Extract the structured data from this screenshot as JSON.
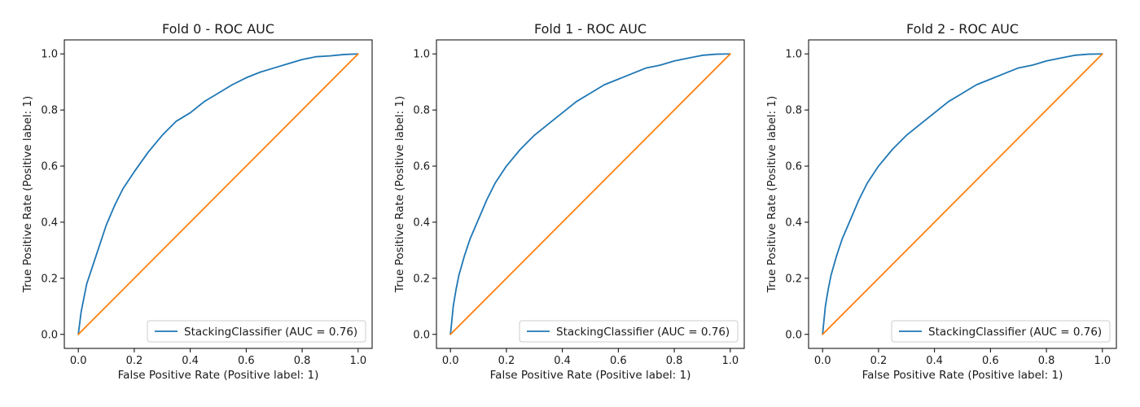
{
  "chart_data": [
    {
      "type": "line",
      "title": "Fold 0 - ROC AUC",
      "xlabel": "False Positive Rate (Positive label: 1)",
      "ylabel": "True Positive Rate (Positive label: 1)",
      "xlim": [
        -0.05,
        1.05
      ],
      "ylim": [
        -0.05,
        1.05
      ],
      "xticks": [
        "0.0",
        "0.2",
        "0.4",
        "0.6",
        "0.8",
        "1.0"
      ],
      "yticks": [
        "0.0",
        "0.2",
        "0.4",
        "0.6",
        "0.8",
        "1.0"
      ],
      "legend_position": "lower-right",
      "series": [
        {
          "name": "StackingClassifier (AUC = 0.76)",
          "color": "#1f77b4",
          "x": [
            0.0,
            0.01,
            0.02,
            0.03,
            0.05,
            0.07,
            0.1,
            0.13,
            0.16,
            0.2,
            0.25,
            0.3,
            0.35,
            0.4,
            0.45,
            0.5,
            0.55,
            0.6,
            0.65,
            0.7,
            0.75,
            0.8,
            0.85,
            0.9,
            0.95,
            1.0
          ],
          "y": [
            0.0,
            0.08,
            0.13,
            0.18,
            0.24,
            0.3,
            0.39,
            0.46,
            0.52,
            0.58,
            0.65,
            0.71,
            0.76,
            0.79,
            0.83,
            0.86,
            0.89,
            0.915,
            0.935,
            0.95,
            0.965,
            0.98,
            0.99,
            0.993,
            0.998,
            1.0
          ]
        },
        {
          "color": "#ff7f0e",
          "x": [
            0.0,
            1.0
          ],
          "y": [
            0.0,
            1.0
          ]
        }
      ]
    },
    {
      "type": "line",
      "title": "Fold 1 - ROC AUC",
      "xlabel": "False Positive Rate (Positive label: 1)",
      "ylabel": "True Positive Rate (Positive label: 1)",
      "xlim": [
        -0.05,
        1.05
      ],
      "ylim": [
        -0.05,
        1.05
      ],
      "xticks": [
        "0.0",
        "0.2",
        "0.4",
        "0.6",
        "0.8",
        "1.0"
      ],
      "yticks": [
        "0.0",
        "0.2",
        "0.4",
        "0.6",
        "0.8",
        "1.0"
      ],
      "legend_position": "lower-right",
      "series": [
        {
          "name": "StackingClassifier (AUC = 0.76)",
          "color": "#1f77b4",
          "x": [
            0.0,
            0.01,
            0.02,
            0.03,
            0.05,
            0.07,
            0.1,
            0.13,
            0.16,
            0.2,
            0.25,
            0.3,
            0.35,
            0.4,
            0.45,
            0.5,
            0.55,
            0.6,
            0.65,
            0.7,
            0.75,
            0.8,
            0.85,
            0.9,
            0.95,
            1.0
          ],
          "y": [
            0.0,
            0.1,
            0.16,
            0.21,
            0.28,
            0.34,
            0.41,
            0.48,
            0.54,
            0.6,
            0.66,
            0.71,
            0.75,
            0.79,
            0.83,
            0.86,
            0.89,
            0.91,
            0.93,
            0.95,
            0.96,
            0.975,
            0.985,
            0.995,
            0.999,
            1.0
          ]
        },
        {
          "color": "#ff7f0e",
          "x": [
            0.0,
            1.0
          ],
          "y": [
            0.0,
            1.0
          ]
        }
      ]
    },
    {
      "type": "line",
      "title": "Fold 2 - ROC AUC",
      "xlabel": "False Positive Rate (Positive label: 1)",
      "ylabel": "True Positive Rate (Positive label: 1)",
      "xlim": [
        -0.05,
        1.05
      ],
      "ylim": [
        -0.05,
        1.05
      ],
      "xticks": [
        "0.0",
        "0.2",
        "0.4",
        "0.6",
        "0.8",
        "1.0"
      ],
      "yticks": [
        "0.0",
        "0.2",
        "0.4",
        "0.6",
        "0.8",
        "1.0"
      ],
      "legend_position": "lower-right",
      "series": [
        {
          "name": "StackingClassifier (AUC = 0.76)",
          "color": "#1f77b4",
          "x": [
            0.0,
            0.01,
            0.02,
            0.03,
            0.05,
            0.07,
            0.1,
            0.13,
            0.16,
            0.2,
            0.25,
            0.3,
            0.35,
            0.4,
            0.45,
            0.5,
            0.55,
            0.6,
            0.65,
            0.7,
            0.75,
            0.8,
            0.85,
            0.9,
            0.95,
            1.0
          ],
          "y": [
            0.0,
            0.1,
            0.16,
            0.21,
            0.28,
            0.34,
            0.41,
            0.48,
            0.54,
            0.6,
            0.66,
            0.71,
            0.75,
            0.79,
            0.83,
            0.86,
            0.89,
            0.91,
            0.93,
            0.95,
            0.96,
            0.975,
            0.985,
            0.995,
            0.999,
            1.0
          ]
        },
        {
          "color": "#ff7f0e",
          "x": [
            0.0,
            1.0
          ],
          "y": [
            0.0,
            1.0
          ]
        }
      ]
    }
  ]
}
